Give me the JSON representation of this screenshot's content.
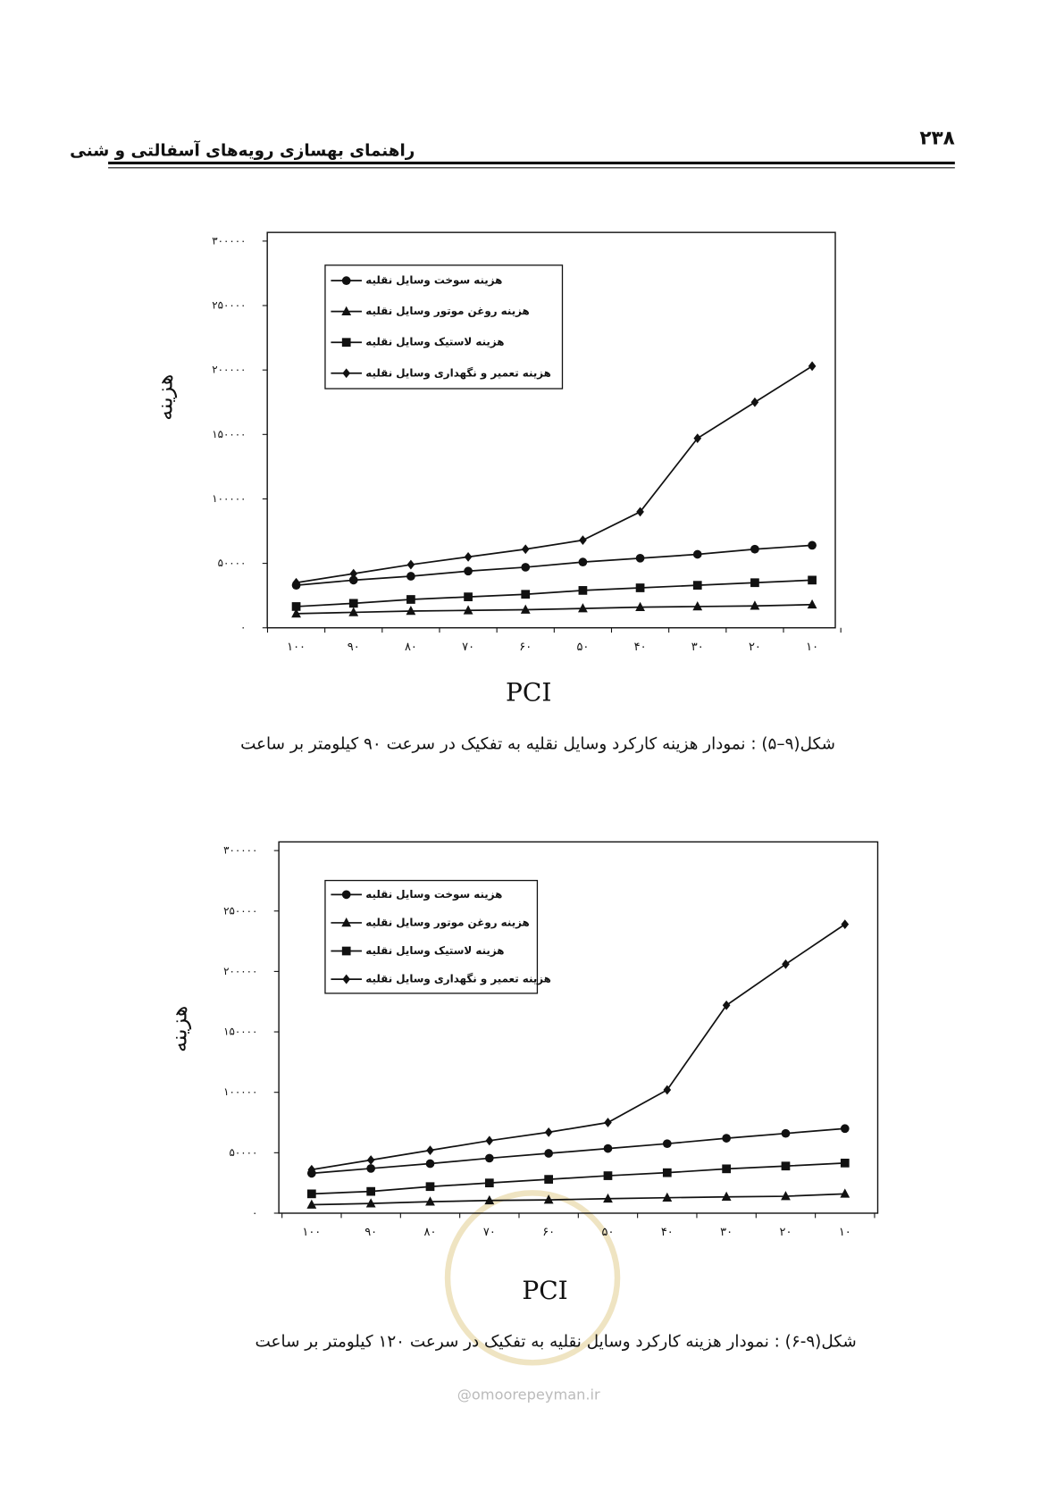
{
  "header": {
    "title": "راهنمای بهسازی رویه‌های آسفالتی و شنی",
    "page_number": "۲۳۸"
  },
  "chart_data": [
    {
      "type": "line",
      "ylabel": "هزینه",
      "xlabel": "PCI",
      "caption": "شکل(۹–۵) : نمودار هزینه کارکرد وسایل نقلیه به تفکیک در سرعت ۹۰ کیلومتر بر ساعت",
      "categories": [
        "۱۰۰",
        "۹۰",
        "۸۰",
        "۷۰",
        "۶۰",
        "۵۰",
        "۴۰",
        "۳۰",
        "۲۰",
        "۱۰"
      ],
      "ylim": [
        0,
        300000
      ],
      "yticks": [
        {
          "value": 0,
          "label": "۰"
        },
        {
          "value": 50000,
          "label": "۵۰۰۰۰"
        },
        {
          "value": 100000,
          "label": "۱۰۰۰۰۰"
        },
        {
          "value": 150000,
          "label": "۱۵۰۰۰۰"
        },
        {
          "value": 200000,
          "label": "۲۰۰۰۰۰"
        },
        {
          "value": 250000,
          "label": "۲۵۰۰۰۰"
        },
        {
          "value": 300000,
          "label": "۳۰۰۰۰۰"
        }
      ],
      "grid": false,
      "series": [
        {
          "name": "هزینه سوخت وسایل نقلیه",
          "color": "#111111",
          "marker": "circle",
          "values": [
            33000,
            37000,
            40000,
            44000,
            47000,
            51000,
            54000,
            57000,
            61000,
            64000
          ]
        },
        {
          "name": "هزینه روغن موتور وسایل نقلیه",
          "color": "#111111",
          "marker": "triangle",
          "values": [
            11000,
            12000,
            13000,
            13500,
            14000,
            15000,
            16000,
            16500,
            17000,
            18000
          ]
        },
        {
          "name": "هزینه لاستیک وسایل نقلیه",
          "color": "#111111",
          "marker": "square",
          "values": [
            16500,
            19000,
            22000,
            24000,
            26000,
            29000,
            31000,
            33000,
            35000,
            37000
          ]
        },
        {
          "name": "هزینه تعمیر و نگهداری وسایل نقلیه",
          "color": "#111111",
          "marker": "diamond",
          "values": [
            35000,
            42000,
            49000,
            55000,
            61000,
            68000,
            90000,
            147000,
            175000,
            203000
          ]
        }
      ]
    },
    {
      "type": "line",
      "ylabel": "هزینه",
      "xlabel": "PCI",
      "caption": "شکل(۹-۶) : نمودار هزینه کارکرد وسایل نقلیه به تفکیک در سرعت ۱۲۰ کیلومتر بر ساعت",
      "categories": [
        "۱۰۰",
        "۹۰",
        "۸۰",
        "۷۰",
        "۶۰",
        "۵۰",
        "۴۰",
        "۳۰",
        "۲۰",
        "۱۰"
      ],
      "ylim": [
        0,
        300000
      ],
      "yticks": [
        {
          "value": 0,
          "label": "۰"
        },
        {
          "value": 50000,
          "label": "۵۰۰۰۰"
        },
        {
          "value": 100000,
          "label": "۱۰۰۰۰۰"
        },
        {
          "value": 150000,
          "label": "۱۵۰۰۰۰"
        },
        {
          "value": 200000,
          "label": "۲۰۰۰۰۰"
        },
        {
          "value": 250000,
          "label": "۲۵۰۰۰۰"
        },
        {
          "value": 300000,
          "label": "۳۰۰۰۰۰"
        }
      ],
      "grid": false,
      "series": [
        {
          "name": "هزینه سوخت وسایل نقلیه",
          "color": "#111111",
          "marker": "circle",
          "values": [
            33000,
            37000,
            41000,
            45500,
            49500,
            53500,
            57500,
            62000,
            66000,
            70000
          ]
        },
        {
          "name": "هزینه روغن موتور وسایل نقلیه",
          "color": "#111111",
          "marker": "triangle",
          "values": [
            7000,
            8000,
            9500,
            10500,
            11000,
            12000,
            12800,
            13500,
            14000,
            16000
          ]
        },
        {
          "name": "هزینه لاستیک وسایل نقلیه",
          "color": "#111111",
          "marker": "square",
          "values": [
            16000,
            18000,
            22000,
            25000,
            28000,
            31000,
            33500,
            36700,
            39000,
            41500
          ]
        },
        {
          "name": "هزینه تعمیر و نگهداری وسایل نقلیه",
          "color": "#111111",
          "marker": "diamond",
          "values": [
            36000,
            44000,
            52000,
            60000,
            67000,
            75000,
            102000,
            172000,
            206000,
            239000
          ]
        }
      ]
    }
  ],
  "watermark": "@omoorepeyman.ir"
}
